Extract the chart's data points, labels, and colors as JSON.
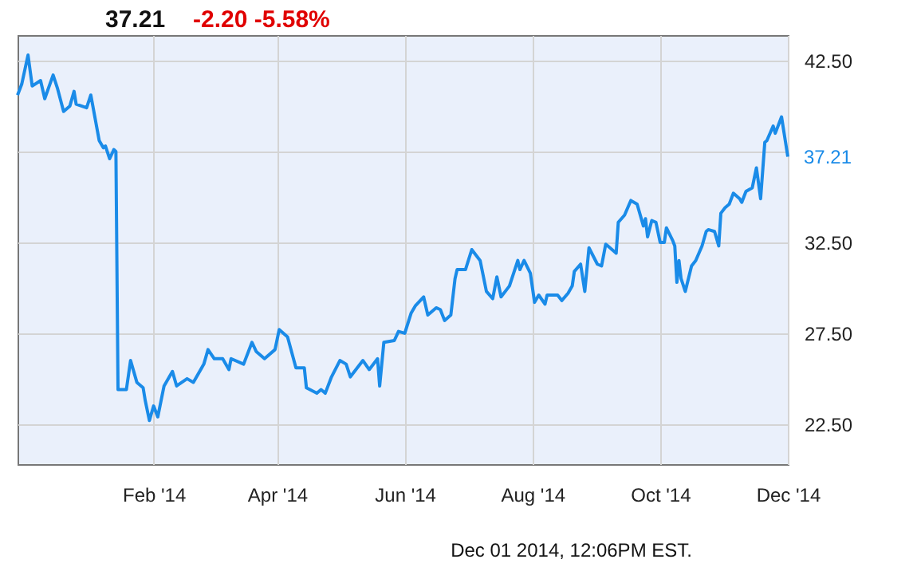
{
  "chart_data": {
    "type": "line",
    "title": "37.21",
    "subtitle": "-2.20  -5.58%",
    "annotations": [
      {
        "text": "37.21",
        "x": "2014-12-01",
        "y": 37.21
      },
      "Dec 01 2014, 12:06PM EST."
    ],
    "x": [
      "2013-11-28",
      "2013-11-30",
      "2013-12-03",
      "2013-12-05",
      "2013-12-09",
      "2013-12-11",
      "2013-12-15",
      "2013-12-17",
      "2013-12-20",
      "2013-12-23",
      "2013-12-25",
      "2013-12-26",
      "2013-12-31",
      "2014-01-02",
      "2014-01-06",
      "2014-01-08",
      "2014-01-09",
      "2014-01-11",
      "2014-01-13",
      "2014-01-14",
      "2014-01-15",
      "2014-01-19",
      "2014-01-21",
      "2014-01-24",
      "2014-01-27",
      "2014-01-28",
      "2014-01-30",
      "2014-02-01",
      "2014-02-03",
      "2014-02-06",
      "2014-02-10",
      "2014-02-12",
      "2014-02-17",
      "2014-02-20",
      "2014-02-25",
      "2014-02-27",
      "2014-03-02",
      "2014-03-06",
      "2014-03-09",
      "2014-03-10",
      "2014-03-16",
      "2014-03-20",
      "2014-03-22",
      "2014-03-26",
      "2014-03-31",
      "2014-04-02",
      "2014-04-06",
      "2014-04-10",
      "2014-04-14",
      "2014-04-15",
      "2014-04-20",
      "2014-04-22",
      "2014-04-24",
      "2014-04-27",
      "2014-05-01",
      "2014-05-04",
      "2014-05-06",
      "2014-05-12",
      "2014-05-15",
      "2014-05-19",
      "2014-05-20",
      "2014-05-22",
      "2014-05-27",
      "2014-05-29",
      "2014-06-01",
      "2014-06-04",
      "2014-06-06",
      "2014-06-10",
      "2014-06-12",
      "2014-06-16",
      "2014-06-18",
      "2014-06-20",
      "2014-06-23",
      "2014-06-25",
      "2014-06-26",
      "2014-06-30",
      "2014-07-03",
      "2014-07-07",
      "2014-07-10",
      "2014-07-13",
      "2014-07-15",
      "2014-07-17",
      "2014-07-21",
      "2014-07-25",
      "2014-07-26",
      "2014-07-28",
      "2014-07-31",
      "2014-08-02",
      "2014-08-04",
      "2014-08-07",
      "2014-08-08",
      "2014-08-13",
      "2014-08-15",
      "2014-08-18",
      "2014-08-20",
      "2014-08-21",
      "2014-08-24",
      "2014-08-26",
      "2014-08-28",
      "2014-09-01",
      "2014-09-03",
      "2014-09-05",
      "2014-09-10",
      "2014-09-11",
      "2014-09-14",
      "2014-09-17",
      "2014-09-20",
      "2014-09-23",
      "2014-09-24",
      "2014-09-25",
      "2014-09-27",
      "2014-09-29",
      "2014-10-01",
      "2014-10-03",
      "2014-10-04",
      "2014-10-07",
      "2014-10-08",
      "2014-10-09",
      "2014-10-10",
      "2014-10-11",
      "2014-10-13",
      "2014-10-16",
      "2014-10-18",
      "2014-10-21",
      "2014-10-23",
      "2014-10-24",
      "2014-10-27",
      "2014-10-29",
      "2014-10-30",
      "2014-11-01",
      "2014-11-03",
      "2014-11-05",
      "2014-11-08",
      "2014-11-09",
      "2014-11-11",
      "2014-11-14",
      "2014-11-16",
      "2014-11-18",
      "2014-11-20",
      "2014-11-21",
      "2014-11-24",
      "2014-11-25",
      "2014-11-28",
      "2014-12-01"
    ],
    "series": [
      {
        "color": "#1a8be8",
        "values": [
          40.6,
          41.2,
          42.8,
          41.1,
          41.4,
          40.4,
          41.7,
          41.0,
          39.7,
          40.0,
          40.8,
          40.1,
          39.9,
          40.6,
          38.1,
          37.7,
          37.8,
          37.1,
          37.6,
          37.5,
          24.4,
          24.4,
          26.0,
          24.8,
          24.5,
          23.8,
          22.7,
          23.5,
          22.9,
          24.6,
          25.4,
          24.6,
          25.0,
          24.8,
          25.8,
          26.6,
          26.1,
          26.1,
          25.5,
          26.1,
          25.8,
          27.0,
          26.5,
          26.1,
          26.6,
          27.7,
          27.3,
          25.6,
          25.6,
          24.5,
          24.2,
          24.4,
          24.2,
          25.1,
          26.0,
          25.8,
          25.1,
          26.0,
          25.5,
          26.1,
          24.6,
          27.0,
          27.1,
          27.6,
          27.5,
          28.6,
          29.0,
          29.5,
          28.5,
          28.9,
          28.8,
          28.2,
          28.5,
          30.5,
          31.0,
          31.0,
          32.1,
          31.5,
          29.8,
          29.4,
          30.6,
          29.5,
          30.1,
          31.5,
          31.0,
          31.5,
          30.8,
          29.2,
          29.6,
          29.1,
          29.6,
          29.6,
          29.3,
          29.7,
          30.1,
          30.9,
          31.3,
          29.8,
          32.2,
          31.3,
          31.2,
          32.4,
          31.9,
          33.6,
          34.0,
          34.8,
          34.6,
          33.4,
          33.8,
          32.8,
          33.7,
          33.6,
          32.5,
          32.5,
          33.3,
          32.6,
          32.3,
          30.3,
          31.5,
          30.5,
          29.8,
          31.2,
          31.5,
          32.3,
          33.1,
          33.2,
          33.1,
          32.3,
          34.1,
          34.4,
          34.6,
          35.2,
          34.9,
          34.7,
          35.3,
          35.5,
          36.6,
          34.9,
          38.0,
          38.1,
          38.9,
          38.5,
          39.4,
          37.21
        ]
      }
    ],
    "xlim": [
      "2013-11-28",
      "2014-12-01"
    ],
    "xticks": [
      {
        "value": "2014-02-01",
        "label": "Feb '14"
      },
      {
        "value": "2014-04-01",
        "label": "Apr '14"
      },
      {
        "value": "2014-06-01",
        "label": "Jun '14"
      },
      {
        "value": "2014-08-01",
        "label": "Aug '14"
      },
      {
        "value": "2014-10-01",
        "label": "Oct '14"
      },
      {
        "value": "2014-12-01",
        "label": "Dec '14"
      }
    ],
    "ylim": [
      20.3,
      43.9
    ],
    "yticks": [
      {
        "value": 22.5,
        "label": "22.50"
      },
      {
        "value": 27.5,
        "label": "27.50"
      },
      {
        "value": 32.5,
        "label": "32.50"
      },
      {
        "value": 37.5,
        "label": null
      },
      {
        "value": 42.5,
        "label": "42.50"
      }
    ],
    "grid": true,
    "line_style": "solid",
    "marker": "none"
  }
}
